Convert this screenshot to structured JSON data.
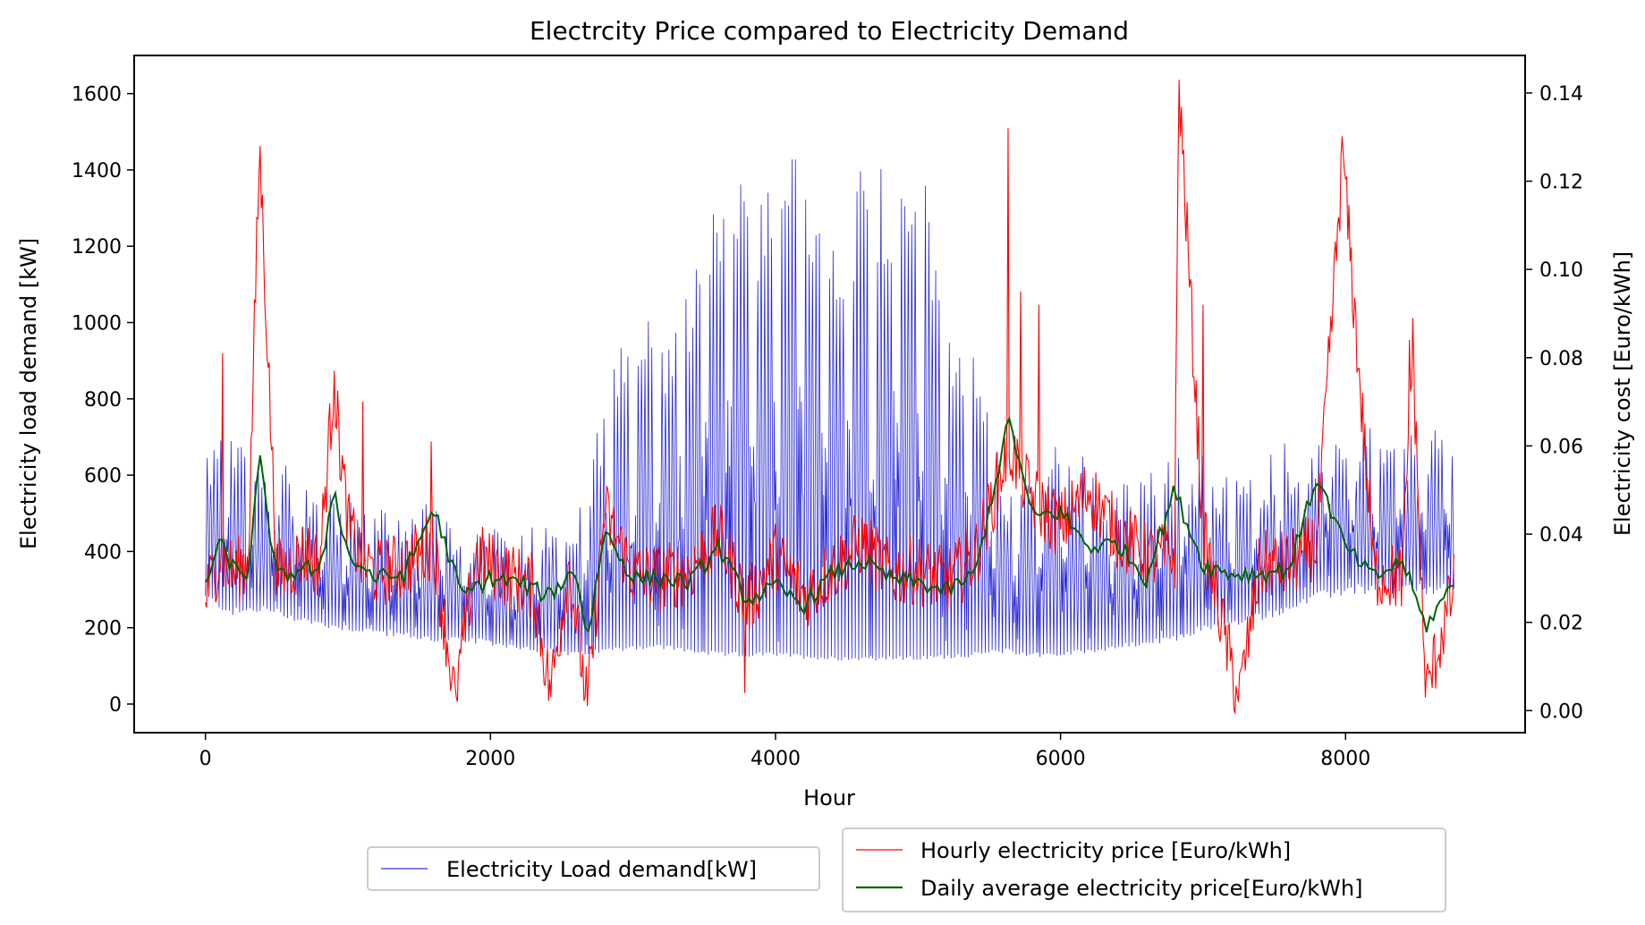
{
  "chart_data": {
    "type": "line",
    "title": "Electrcity Price compared to Electricity Demand",
    "xlabel": "Hour",
    "ylabel_left": "Electricity load demand [kW]",
    "ylabel_right": "Electricity cost [Euro/kWh]",
    "xlim": [
      -500,
      9260
    ],
    "ylim_left": [
      -75,
      1700
    ],
    "ylim_right": [
      -0.005,
      0.1485
    ],
    "x_ticks": [
      0,
      2000,
      4000,
      6000,
      8000
    ],
    "y_left_ticks": [
      0,
      200,
      400,
      600,
      800,
      1000,
      1200,
      1400,
      1600
    ],
    "y_right_ticks": [
      0.0,
      0.02,
      0.04,
      0.06,
      0.08,
      0.1,
      0.12,
      0.14
    ],
    "x_tick_labels": [
      "0",
      "2000",
      "4000",
      "6000",
      "8000"
    ],
    "y_left_tick_labels": [
      "0",
      "200",
      "400",
      "600",
      "800",
      "1000",
      "1200",
      "1400",
      "1600"
    ],
    "y_right_tick_labels": [
      "0.00",
      "0.02",
      "0.04",
      "0.06",
      "0.08",
      "0.10",
      "0.12",
      "0.14"
    ],
    "grid": false,
    "legend_left": {
      "placement": "bottom-left, below axes",
      "entries": [
        {
          "name": "Electricity Load demand[kW]",
          "color": "#0000cc"
        }
      ]
    },
    "legend_right": {
      "placement": "bottom-right, below axes",
      "entries": [
        {
          "name": "Hourly electricity price [Euro/kWh]",
          "color": "#ff0000"
        },
        {
          "name": "Daily average electricity price[Euro/kWh]",
          "color": "#006400"
        }
      ]
    },
    "series": [
      {
        "name": "Electricity Load demand[kW]",
        "axis": "left",
        "color": "#0000cc",
        "x": [
          0,
          200,
          400,
          600,
          800,
          1000,
          1200,
          1400,
          1600,
          1800,
          2000,
          2200,
          2400,
          2600,
          2800,
          3000,
          3200,
          3400,
          3600,
          3800,
          4000,
          4200,
          4400,
          4600,
          4800,
          5000,
          5200,
          5400,
          5600,
          5800,
          6000,
          6200,
          6400,
          6600,
          6800,
          7000,
          7200,
          7400,
          7600,
          7800,
          8000,
          8200,
          8400,
          8600,
          8760
        ],
        "peaks": [
          700,
          720,
          650,
          620,
          560,
          540,
          520,
          500,
          560,
          470,
          460,
          450,
          520,
          480,
          800,
          1050,
          1000,
          1100,
          1350,
          1400,
          1350,
          1500,
          1300,
          1450,
          1450,
          1500,
          1050,
          900,
          600,
          620,
          700,
          650,
          580,
          600,
          660,
          660,
          600,
          650,
          700,
          720,
          740,
          720,
          700,
          720,
          720
        ],
        "troughs": [
          280,
          240,
          250,
          230,
          210,
          200,
          190,
          180,
          170,
          170,
          160,
          150,
          140,
          130,
          140,
          150,
          150,
          140,
          130,
          130,
          130,
          125,
          120,
          120,
          120,
          120,
          125,
          130,
          140,
          130,
          130,
          140,
          150,
          160,
          170,
          200,
          210,
          230,
          250,
          280,
          300,
          300,
          300,
          300,
          300
        ]
      },
      {
        "name": "Hourly electricity price [Euro/kWh]",
        "axis": "right",
        "color": "#ff0000",
        "x": [
          0,
          100,
          200,
          300,
          380,
          500,
          600,
          700,
          800,
          900,
          1000,
          1100,
          1200,
          1400,
          1600,
          1750,
          1900,
          2100,
          2300,
          2420,
          2550,
          2680,
          2800,
          3000,
          3200,
          3400,
          3600,
          3800,
          4000,
          4200,
          4400,
          4600,
          4800,
          5000,
          5200,
          5400,
          5640,
          5800,
          6000,
          6200,
          6400,
          6600,
          6800,
          6830,
          7000,
          7250,
          7400,
          7600,
          7800,
          7980,
          8200,
          8400,
          8470,
          8560,
          8760
        ],
        "values": [
          0.026,
          0.035,
          0.031,
          0.034,
          0.128,
          0.031,
          0.033,
          0.036,
          0.033,
          0.074,
          0.042,
          0.034,
          0.031,
          0.033,
          0.038,
          0.003,
          0.035,
          0.031,
          0.028,
          0.004,
          0.033,
          0.001,
          0.045,
          0.031,
          0.03,
          0.032,
          0.04,
          0.024,
          0.035,
          0.026,
          0.032,
          0.038,
          0.031,
          0.032,
          0.029,
          0.035,
          0.06,
          0.048,
          0.042,
          0.05,
          0.04,
          0.035,
          0.035,
          0.143,
          0.04,
          0.002,
          0.033,
          0.033,
          0.038,
          0.126,
          0.031,
          0.03,
          0.084,
          0.003,
          0.028
        ],
        "spikes_x": [
          120,
          380,
          900,
          1100,
          1580,
          1760,
          2420,
          2680,
          3780,
          5630,
          5720,
          5850,
          6830,
          7000,
          7250,
          7980,
          8450,
          8560
        ],
        "spikes_y": [
          0.081,
          0.128,
          0.077,
          0.07,
          0.061,
          0.003,
          0.003,
          0.001,
          0.004,
          0.132,
          0.095,
          0.092,
          0.143,
          0.092,
          0.002,
          0.126,
          0.084,
          0.003
        ]
      },
      {
        "name": "Daily average electricity price[Euro/kWh]",
        "axis": "right",
        "color": "#006400",
        "x": [
          0,
          100,
          200,
          300,
          380,
          500,
          600,
          700,
          800,
          900,
          1000,
          1200,
          1400,
          1600,
          1800,
          2000,
          2200,
          2400,
          2600,
          2680,
          2800,
          3000,
          3200,
          3400,
          3600,
          3800,
          4000,
          4200,
          4400,
          4600,
          4800,
          5000,
          5200,
          5400,
          5640,
          5800,
          6000,
          6200,
          6400,
          6600,
          6800,
          7000,
          7200,
          7400,
          7600,
          7800,
          8000,
          8200,
          8400,
          8560,
          8760
        ],
        "values": [
          0.029,
          0.038,
          0.032,
          0.031,
          0.057,
          0.03,
          0.031,
          0.033,
          0.03,
          0.051,
          0.035,
          0.03,
          0.031,
          0.046,
          0.026,
          0.03,
          0.029,
          0.026,
          0.032,
          0.016,
          0.041,
          0.03,
          0.03,
          0.029,
          0.037,
          0.025,
          0.028,
          0.024,
          0.031,
          0.034,
          0.03,
          0.029,
          0.027,
          0.031,
          0.066,
          0.044,
          0.045,
          0.037,
          0.038,
          0.03,
          0.05,
          0.033,
          0.031,
          0.031,
          0.032,
          0.053,
          0.037,
          0.03,
          0.034,
          0.019,
          0.029
        ]
      }
    ]
  }
}
